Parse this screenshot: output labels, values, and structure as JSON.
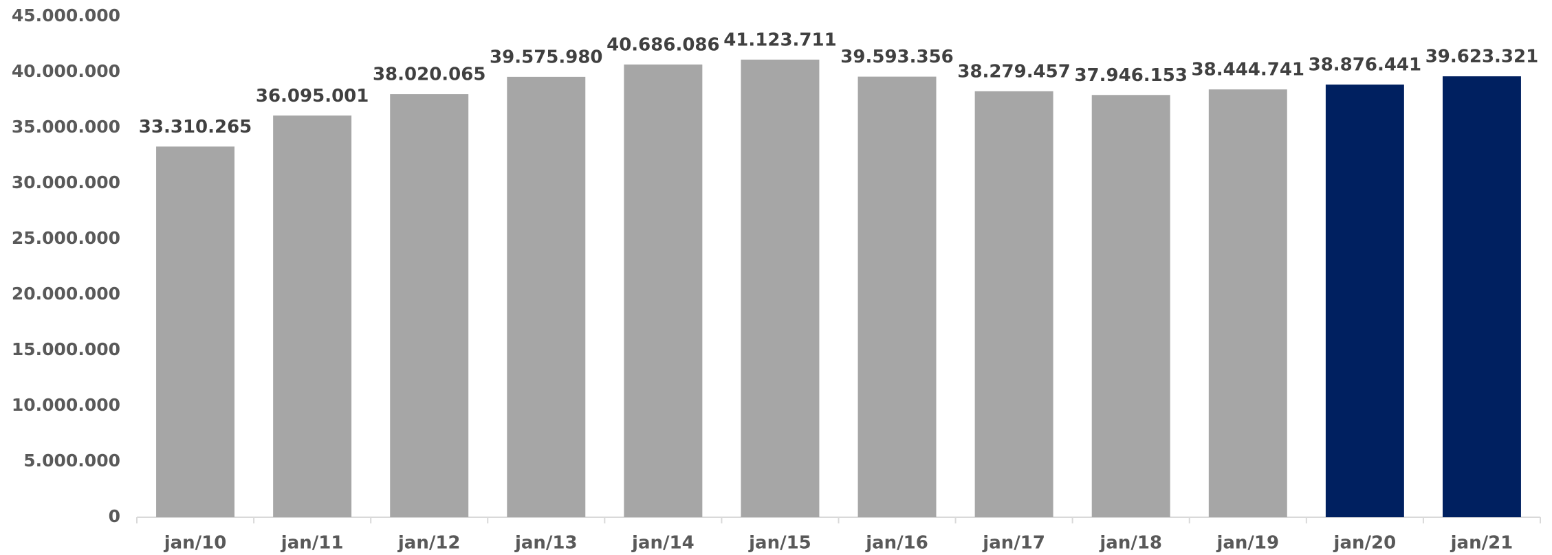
{
  "chart_data": {
    "type": "bar",
    "categories": [
      "jan/10",
      "jan/11",
      "jan/12",
      "jan/13",
      "jan/14",
      "jan/15",
      "jan/16",
      "jan/17",
      "jan/18",
      "jan/19",
      "jan/20",
      "jan/21"
    ],
    "values": [
      33310265,
      36095001,
      38020065,
      39575980,
      40686086,
      41123711,
      39593356,
      38279457,
      37946153,
      38444741,
      38876441,
      39623321
    ],
    "value_labels": [
      "33.310.265",
      "36.095.001",
      "38.020.065",
      "39.575.980",
      "40.686.086",
      "41.123.711",
      "39.593.356",
      "38.279.457",
      "37.946.153",
      "38.444.741",
      "38.876.441",
      "39.623.321"
    ],
    "colors": [
      "#a6a6a6",
      "#a6a6a6",
      "#a6a6a6",
      "#a6a6a6",
      "#a6a6a6",
      "#a6a6a6",
      "#a6a6a6",
      "#a6a6a6",
      "#a6a6a6",
      "#a6a6a6",
      "#002060",
      "#002060"
    ],
    "ylim": [
      0,
      45000000
    ],
    "yticks": [
      0,
      {
        "value": 5000000,
        "label": "5.000.000"
      },
      {
        "value": 10000000,
        "label": "10.000.000"
      },
      {
        "value": 15000000,
        "label": "15.000.000"
      },
      {
        "value": 20000000,
        "label": "20.000.000"
      },
      {
        "value": 25000000,
        "label": "25.000.000"
      },
      {
        "value": 30000000,
        "label": "30.000.000"
      },
      {
        "value": 35000000,
        "label": "35.000.000"
      },
      {
        "value": 40000000,
        "label": "40.000.000"
      },
      {
        "value": 45000000,
        "label": "45.000.000"
      }
    ],
    "grid": false
  }
}
